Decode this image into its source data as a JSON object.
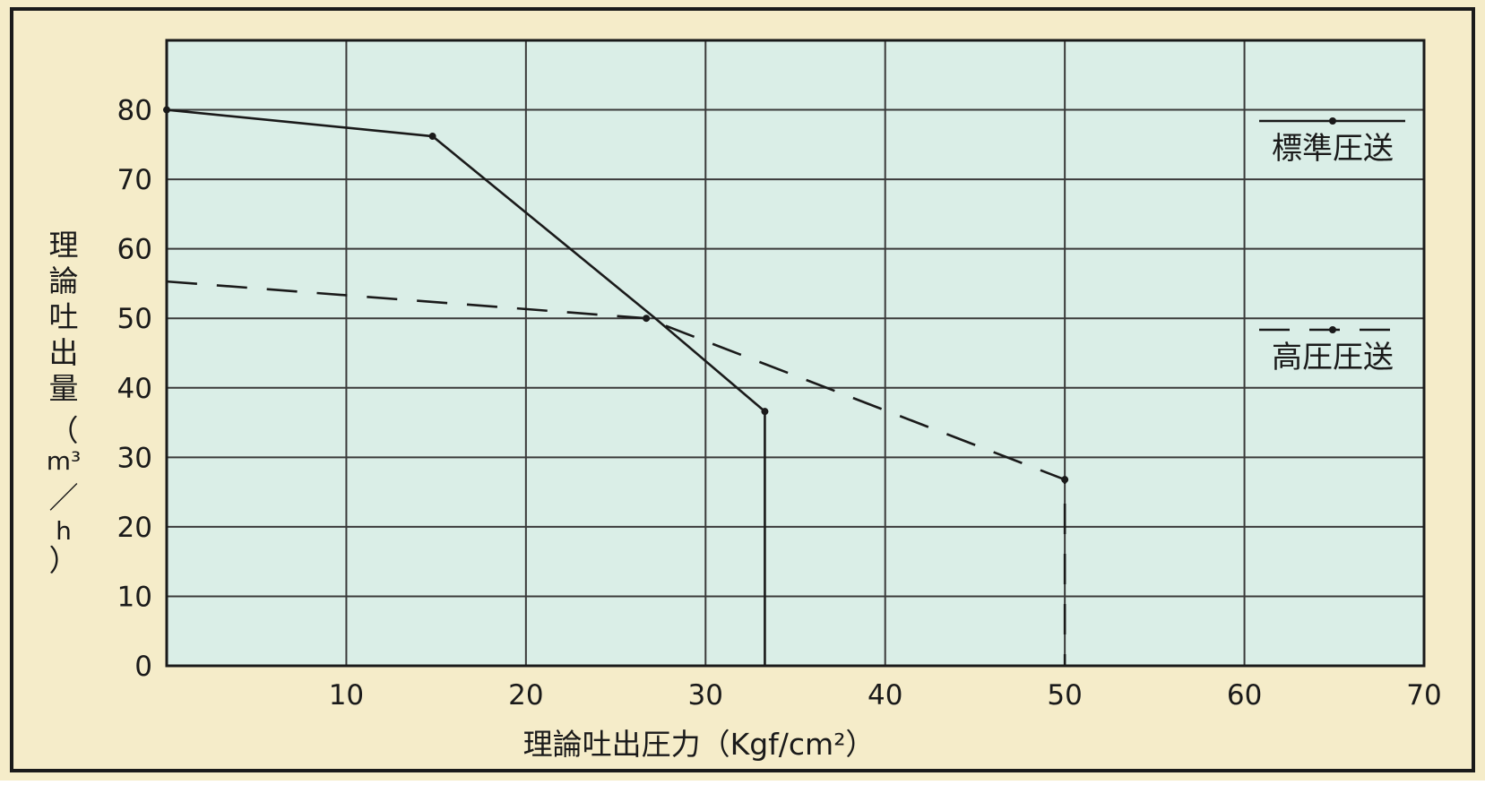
{
  "colors": {
    "background": "#f5ecc9",
    "plot_area": "#daeee7",
    "grid": "#3a3a3a",
    "frame": "#1a1a1a",
    "line": "#1a1a1a",
    "text": "#1a1a1a"
  },
  "chart_data": {
    "type": "line",
    "xlabel": "理論吐出圧力（Kgf/cm²）",
    "ylabel_parts": [
      "理",
      "論",
      "吐",
      "出",
      "量",
      "（",
      "m³",
      "／",
      "h",
      "）"
    ],
    "xlim": [
      0,
      70
    ],
    "ylim": [
      0,
      90
    ],
    "xticks": [
      10,
      20,
      30,
      40,
      50,
      60,
      70
    ],
    "yticks": [
      0,
      10,
      20,
      30,
      40,
      50,
      60,
      70,
      80
    ],
    "grid": true,
    "legend_position": "right",
    "series": [
      {
        "name": "標準圧送",
        "style": "solid",
        "points": [
          [
            0,
            80
          ],
          [
            14.8,
            76.2
          ],
          [
            27.2,
            50.0
          ],
          [
            33.3,
            36.6
          ],
          [
            33.3,
            0
          ]
        ],
        "markers": [
          [
            0,
            80
          ],
          [
            14.8,
            76.2
          ],
          [
            33.3,
            36.6
          ]
        ]
      },
      {
        "name": "高圧圧送",
        "style": "dashed",
        "points": [
          [
            0,
            55.3
          ],
          [
            26.7,
            50.0
          ],
          [
            50.0,
            26.8
          ],
          [
            50.0,
            0
          ]
        ],
        "markers": [
          [
            26.7,
            50.0
          ],
          [
            50.0,
            26.8
          ]
        ]
      }
    ]
  }
}
